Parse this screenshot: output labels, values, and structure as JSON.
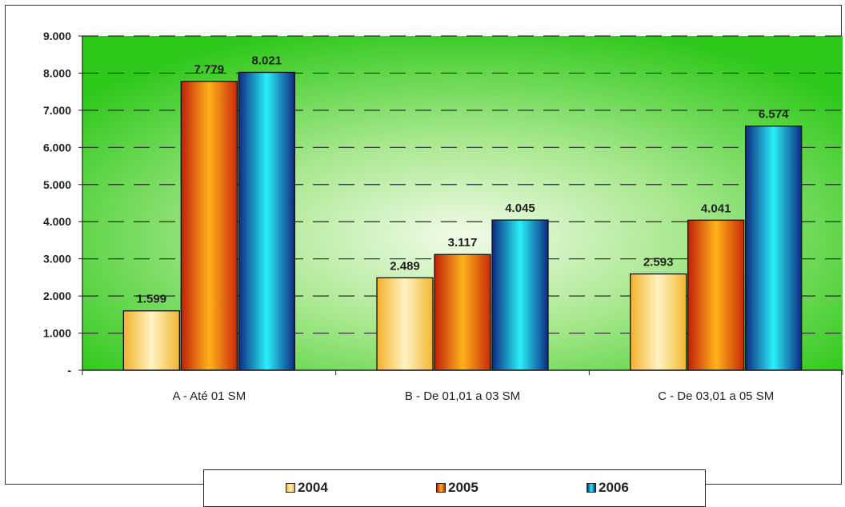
{
  "chart_data": {
    "type": "bar",
    "categories": [
      "A - Até 01 SM",
      "B - De 01,01 a 03 SM",
      "C - De 03,01 a 05 SM"
    ],
    "series": [
      {
        "name": "2004",
        "values": [
          1599,
          2489,
          2593
        ],
        "labels": [
          "1.599",
          "2.489",
          "2.593"
        ],
        "color": "#f5c842"
      },
      {
        "name": "2005",
        "values": [
          7779,
          3117,
          4041
        ],
        "labels": [
          "7.779",
          "3.117",
          "4.041"
        ],
        "color": "#e8400c"
      },
      {
        "name": "2006",
        "values": [
          8021,
          4045,
          6574
        ],
        "labels": [
          "8.021",
          "4.045",
          "6.574"
        ],
        "color": "#1b7fc0"
      }
    ],
    "ylim": [
      0,
      9000
    ],
    "yticks": [
      0,
      1000,
      2000,
      3000,
      4000,
      5000,
      6000,
      7000,
      8000,
      9000
    ],
    "ytick_labels": [
      "-",
      "1.000",
      "2.000",
      "3.000",
      "4.000",
      "5.000",
      "6.000",
      "7.000",
      "8.000",
      "9.000"
    ],
    "grid": "dashed horizontal",
    "plot_background": "#3ccf1e",
    "legend_position": "bottom"
  }
}
